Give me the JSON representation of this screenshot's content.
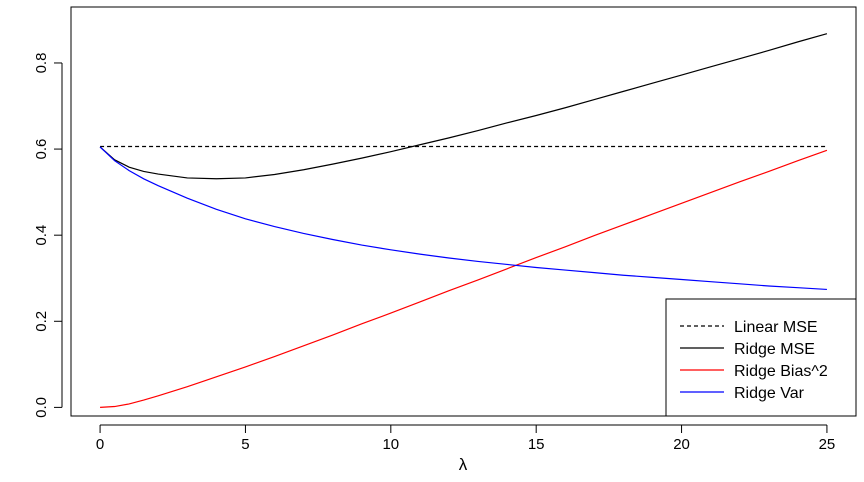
{
  "chart_data": {
    "type": "line",
    "xlabel": "λ",
    "ylabel": "",
    "xlim": [
      -1,
      26
    ],
    "ylim": [
      -0.02,
      0.93
    ],
    "xticks": [
      0,
      5,
      10,
      15,
      20,
      25
    ],
    "yticks": [
      0.0,
      0.2,
      0.4,
      0.6,
      0.8
    ],
    "xtick_labels": [
      "0",
      "5",
      "10",
      "15",
      "20",
      "25"
    ],
    "ytick_labels": [
      "0.0",
      "0.2",
      "0.4",
      "0.6",
      "0.8"
    ],
    "legend_position": "bottom-right",
    "grid": false,
    "series": [
      {
        "name": "Linear MSE",
        "color": "#000000",
        "dash": "dashed",
        "x": [
          0,
          25
        ],
        "y": [
          0.606,
          0.606
        ]
      },
      {
        "name": "Ridge MSE",
        "color": "#000000",
        "dash": "solid",
        "x": [
          0,
          0.5,
          1,
          1.5,
          2,
          3,
          4,
          5,
          6,
          7,
          8,
          9,
          10,
          11,
          12,
          13,
          14,
          15,
          16,
          17,
          18,
          19,
          20,
          21,
          22,
          23,
          24,
          25
        ],
        "y": [
          0.605,
          0.575,
          0.558,
          0.548,
          0.542,
          0.533,
          0.531,
          0.533,
          0.541,
          0.552,
          0.565,
          0.579,
          0.594,
          0.61,
          0.626,
          0.643,
          0.661,
          0.678,
          0.696,
          0.715,
          0.734,
          0.753,
          0.772,
          0.791,
          0.81,
          0.829,
          0.849,
          0.868
        ]
      },
      {
        "name": "Ridge Bias^2",
        "color": "#ff0000",
        "dash": "solid",
        "x": [
          0,
          0.5,
          1,
          1.5,
          2,
          3,
          4,
          5,
          6,
          7,
          8,
          9,
          10,
          11,
          12,
          13,
          14,
          15,
          16,
          17,
          18,
          19,
          20,
          21,
          22,
          23,
          24,
          25
        ],
        "y": [
          0.0,
          0.002,
          0.008,
          0.017,
          0.027,
          0.048,
          0.071,
          0.094,
          0.118,
          0.143,
          0.168,
          0.194,
          0.219,
          0.245,
          0.271,
          0.296,
          0.322,
          0.348,
          0.373,
          0.399,
          0.424,
          0.449,
          0.474,
          0.499,
          0.524,
          0.548,
          0.573,
          0.597
        ]
      },
      {
        "name": "Ridge Var",
        "color": "#0000ff",
        "dash": "solid",
        "x": [
          0,
          0.5,
          1,
          1.5,
          2,
          3,
          4,
          5,
          6,
          7,
          8,
          9,
          10,
          11,
          12,
          13,
          14,
          15,
          16,
          17,
          18,
          19,
          20,
          21,
          22,
          23,
          24,
          25
        ],
        "y": [
          0.605,
          0.573,
          0.55,
          0.531,
          0.515,
          0.486,
          0.46,
          0.438,
          0.42,
          0.404,
          0.39,
          0.377,
          0.366,
          0.356,
          0.347,
          0.339,
          0.332,
          0.325,
          0.319,
          0.313,
          0.307,
          0.302,
          0.297,
          0.292,
          0.287,
          0.282,
          0.278,
          0.274
        ]
      }
    ]
  }
}
